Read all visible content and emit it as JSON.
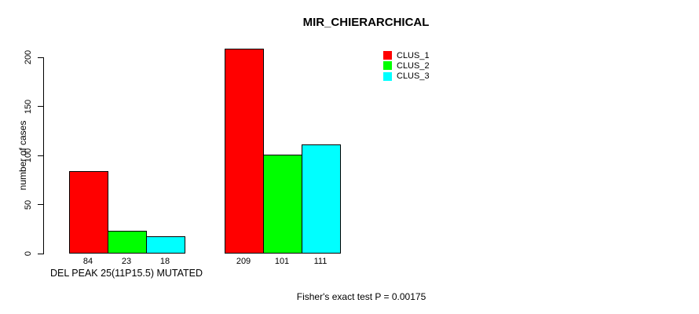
{
  "chart_data": {
    "type": "bar",
    "title": "MIR_CHIERARCHICAL",
    "ylabel": "number of cases",
    "xlabel": "DEL PEAK 25(11P15.5) MUTATED",
    "annotation": "Fisher's exact test P = 0.00175",
    "categories": [
      "DEL PEAK 25(11P15.5) MUTATED",
      ""
    ],
    "series": [
      {
        "name": "CLUS_1",
        "color": "#ff0000",
        "values": [
          84,
          209
        ]
      },
      {
        "name": "CLUS_2",
        "color": "#00ff00",
        "values": [
          23,
          101
        ]
      },
      {
        "name": "CLUS_3",
        "color": "#00ffff",
        "values": [
          18,
          111
        ]
      }
    ],
    "y_ticks": [
      0,
      50,
      100,
      150,
      200
    ],
    "ylim": [
      0,
      209
    ],
    "bar_value_labels_shown": true,
    "grid": "off",
    "legend_position": "top-right",
    "axis_color": "#000000",
    "background_color": "#ffffff"
  }
}
